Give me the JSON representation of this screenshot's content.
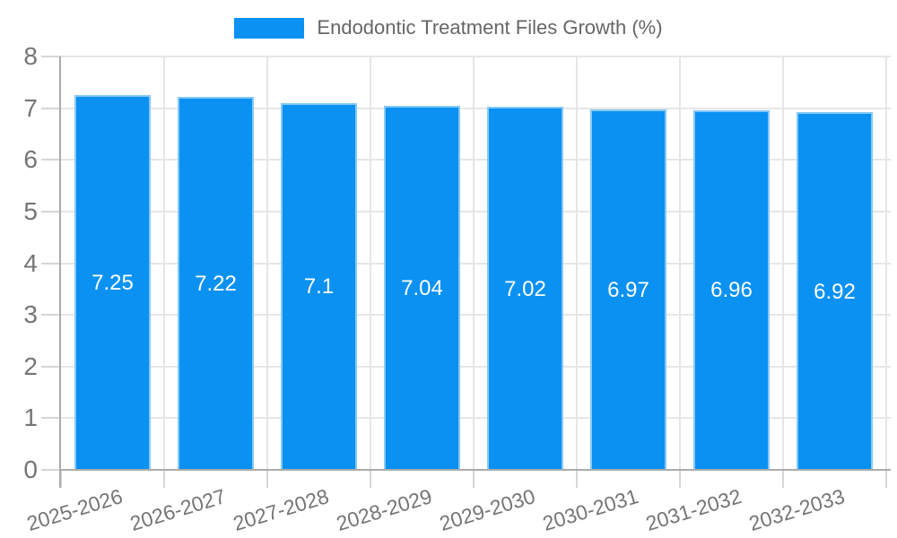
{
  "legend": {
    "label": "Endodontic Treatment Files Growth (%)"
  },
  "chart_data": {
    "type": "bar",
    "title": "Endodontic Treatment Files Growth (%)",
    "categories": [
      "2025-2026",
      "2026-2027",
      "2027-2028",
      "2028-2029",
      "2029-2030",
      "2030-2031",
      "2031-2032",
      "2032-2033"
    ],
    "values": [
      7.25,
      7.22,
      7.1,
      7.04,
      7.02,
      6.97,
      6.96,
      6.92
    ],
    "value_labels": [
      "7.25",
      "7.22",
      "7.1",
      "7.04",
      "7.02",
      "6.97",
      "6.96",
      "6.92"
    ],
    "xlabel": "",
    "ylabel": "",
    "ylim": [
      0,
      8
    ],
    "yticks": [
      0,
      1,
      2,
      3,
      4,
      5,
      6,
      7,
      8
    ],
    "grid": true,
    "legend_position": "top",
    "colors": {
      "bar_fill": "#0a91f2",
      "bar_border": "#85c9f8",
      "value_label": "#ffffff",
      "axis_text": "#757575",
      "legend_text": "#666666",
      "gridline": "#e6e6e6",
      "axis_line": "#ababab",
      "tick_mark": "#d6d6d6",
      "background": "#ffffff"
    }
  }
}
